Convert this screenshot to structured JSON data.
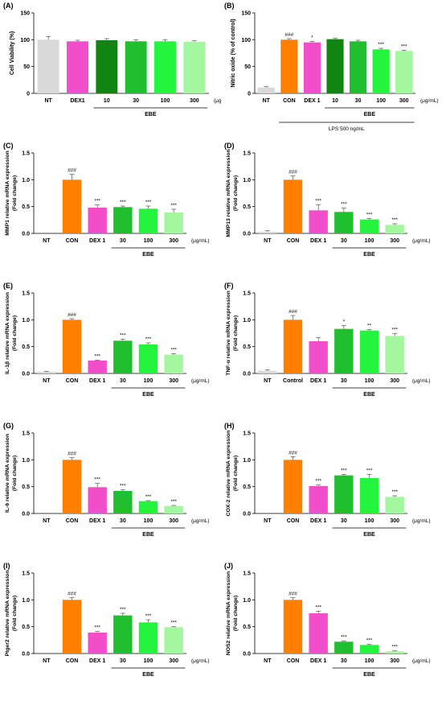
{
  "colors": {
    "NT": "#d9d9d9",
    "CON": "#ff8000",
    "DEX": "#f24ecb",
    "dark_green": "#118511",
    "green30": "#1fbf2f",
    "green100": "#22f53b",
    "green300": "#a3f79f"
  },
  "chart_data": [
    {
      "id": "A",
      "type": "bar",
      "panel_label": "(A)",
      "ylabel": "Cell Viability (%)",
      "ylabel2": "",
      "ylim": [
        0,
        150
      ],
      "yticks": [
        0,
        50,
        100,
        150
      ],
      "ytick_labels": [
        "0",
        "50",
        "100",
        "150"
      ],
      "categories": [
        "NT",
        "DEX1",
        "10",
        "30",
        "100",
        "300"
      ],
      "values": [
        100,
        97,
        99,
        97,
        97,
        96
      ],
      "errors": [
        6,
        2,
        3,
        3,
        3,
        2
      ],
      "colors": [
        "NT",
        "DEX",
        "dark_green",
        "green30",
        "green100",
        "green300"
      ],
      "annotations": [
        "",
        "",
        "",
        "",
        "",
        ""
      ],
      "unit_label": "(μg/mL)",
      "groups": [
        {
          "label": "EBE",
          "from": 2,
          "to": 5
        }
      ]
    },
    {
      "id": "B",
      "type": "bar",
      "panel_label": "(B)",
      "ylabel": "Nitric oxide (% of control)",
      "ylabel2": "",
      "ylim": [
        0,
        150
      ],
      "yticks": [
        0,
        50,
        100,
        150
      ],
      "ytick_labels": [
        "0",
        "50",
        "100",
        "150"
      ],
      "categories": [
        "NT",
        "CON",
        "DEX 1",
        "10",
        "30",
        "100",
        "300"
      ],
      "values": [
        11,
        100,
        95,
        101,
        97,
        82,
        79
      ],
      "errors": [
        1.5,
        2,
        2,
        1.5,
        2,
        2,
        1.5
      ],
      "colors": [
        "NT",
        "CON",
        "DEX",
        "dark_green",
        "green30",
        "green100",
        "green300"
      ],
      "annotations": [
        "",
        "###",
        "*",
        "",
        "",
        "***",
        "***"
      ],
      "unit_label": "(μg/mL)",
      "groups": [
        {
          "label": "EBE",
          "from": 3,
          "to": 6
        },
        {
          "label": "LPS 500 ng/mL",
          "from": 1,
          "to": 6
        }
      ]
    },
    {
      "id": "C",
      "type": "bar",
      "panel_label": "(C)",
      "ylabel": "MMP1 relative mRNA expression",
      "ylabel2": "(Fold change)",
      "ylim": [
        0,
        1.5
      ],
      "yticks": [
        0,
        0.5,
        1.0,
        1.5
      ],
      "ytick_labels": [
        "0.0",
        "0.5",
        "1.0",
        "1.5"
      ],
      "categories": [
        "NT",
        "CON",
        "DEX 1",
        "30",
        "100",
        "300"
      ],
      "values": [
        0,
        1.0,
        0.48,
        0.49,
        0.46,
        0.39
      ],
      "errors": [
        0,
        0.1,
        0.05,
        0.02,
        0.05,
        0.06
      ],
      "colors": [
        "NT",
        "CON",
        "DEX",
        "green30",
        "green100",
        "green300"
      ],
      "annotations": [
        "",
        "###",
        "***",
        "***",
        "***",
        "***"
      ],
      "unit_label": "(μg/mL)",
      "groups": [
        {
          "label": "EBE",
          "from": 3,
          "to": 5
        }
      ]
    },
    {
      "id": "D",
      "type": "bar",
      "panel_label": "(D)",
      "ylabel": "MMP13 relative mRNA expression",
      "ylabel2": "(Fold change)",
      "ylim": [
        0,
        1.5
      ],
      "yticks": [
        0,
        0.5,
        1.0,
        1.5
      ],
      "ytick_labels": [
        "0.0",
        "0.5",
        "1.0",
        "1.5"
      ],
      "categories": [
        "NT",
        "CON",
        "DEX 1",
        "30",
        "100",
        "300"
      ],
      "values": [
        0.03,
        1.0,
        0.43,
        0.4,
        0.26,
        0.16
      ],
      "errors": [
        0.02,
        0.07,
        0.1,
        0.07,
        0.02,
        0.02
      ],
      "colors": [
        "NT",
        "CON",
        "DEX",
        "green30",
        "green100",
        "green300"
      ],
      "annotations": [
        "",
        "###",
        "***",
        "***",
        "***",
        "***"
      ],
      "unit_label": "(μg/mL)",
      "groups": [
        {
          "label": "EBE",
          "from": 3,
          "to": 5
        }
      ]
    },
    {
      "id": "E",
      "type": "bar",
      "panel_label": "(E)",
      "ylabel": "IL-1β relative mRNA expression",
      "ylabel2": "(Fold change)",
      "ylim": [
        0,
        1.5
      ],
      "yticks": [
        0,
        0.5,
        1.0,
        1.5
      ],
      "ytick_labels": [
        "0.0",
        "0.5",
        "1.0",
        "1.5"
      ],
      "categories": [
        "NT",
        "CON",
        "DEX 1",
        "30",
        "100",
        "300"
      ],
      "values": [
        0.03,
        1.0,
        0.24,
        0.61,
        0.54,
        0.35
      ],
      "errors": [
        0.01,
        0.02,
        0.01,
        0.03,
        0.03,
        0.02
      ],
      "colors": [
        "NT",
        "CON",
        "DEX",
        "green30",
        "green100",
        "green300"
      ],
      "annotations": [
        "",
        "###",
        "***",
        "***",
        "***",
        "***"
      ],
      "unit_label": "(μg/mL)",
      "groups": [
        {
          "label": "EBE",
          "from": 3,
          "to": 5
        }
      ]
    },
    {
      "id": "F",
      "type": "bar",
      "panel_label": "(F)",
      "ylabel": "TNF-α relative mRNA expression",
      "ylabel2": "(Fold change)",
      "ylim": [
        0,
        1.5
      ],
      "yticks": [
        0,
        0.5,
        1.0,
        1.5
      ],
      "ytick_labels": [
        "0.0",
        "0.5",
        "1.0",
        "1.5"
      ],
      "categories": [
        "NT",
        "Control",
        "DEX 1",
        "30",
        "100",
        "300"
      ],
      "values": [
        0.05,
        1.0,
        0.6,
        0.83,
        0.8,
        0.7
      ],
      "errors": [
        0.02,
        0.08,
        0.07,
        0.06,
        0.02,
        0.04
      ],
      "colors": [
        "NT",
        "CON",
        "DEX",
        "green30",
        "green100",
        "green300"
      ],
      "annotations": [
        "",
        "###",
        "",
        "*",
        "**",
        "***"
      ],
      "unit_label": "(μg/mL)",
      "groups": [
        {
          "label": "EBE",
          "from": 3,
          "to": 5
        }
      ]
    },
    {
      "id": "G",
      "type": "bar",
      "panel_label": "(G)",
      "ylabel": "IL-6 relative mRNA expression",
      "ylabel2": "(Fold change)",
      "ylim": [
        0,
        1.5
      ],
      "yticks": [
        0,
        0.5,
        1.0,
        1.5
      ],
      "ytick_labels": [
        "0.0",
        "0.5",
        "1.0",
        "1.5"
      ],
      "categories": [
        "NT",
        "CON",
        "DEX 1",
        "30",
        "100",
        "300"
      ],
      "values": [
        0,
        1.0,
        0.49,
        0.42,
        0.23,
        0.14
      ],
      "errors": [
        0,
        0.04,
        0.07,
        0.02,
        0.01,
        0.01
      ],
      "colors": [
        "NT",
        "CON",
        "DEX",
        "green30",
        "green100",
        "green300"
      ],
      "annotations": [
        "",
        "###",
        "***",
        "***",
        "***",
        "***"
      ],
      "unit_label": "(μg/mL)",
      "groups": [
        {
          "label": "EBE",
          "from": 3,
          "to": 5
        }
      ]
    },
    {
      "id": "H",
      "type": "bar",
      "panel_label": "(H)",
      "ylabel": "COX-2 relative mRNA expression",
      "ylabel2": "(Fold change)",
      "ylim": [
        0,
        1.5
      ],
      "yticks": [
        0,
        0.5,
        1.0,
        1.5
      ],
      "ytick_labels": [
        "0.0",
        "0.5",
        "1.0",
        "1.5"
      ],
      "categories": [
        "NT",
        "CON",
        "DEX 1",
        "30",
        "100",
        "300"
      ],
      "values": [
        0,
        1.0,
        0.51,
        0.71,
        0.66,
        0.31
      ],
      "errors": [
        0,
        0.06,
        0.02,
        0.02,
        0.07,
        0.02
      ],
      "colors": [
        "NT",
        "CON",
        "DEX",
        "green30",
        "green100",
        "green300"
      ],
      "annotations": [
        "",
        "###",
        "***",
        "***",
        "***",
        "***"
      ],
      "unit_label": "(μg/mL)",
      "groups": [
        {
          "label": "EBE",
          "from": 3,
          "to": 5
        }
      ]
    },
    {
      "id": "I",
      "type": "bar",
      "panel_label": "(I)",
      "ylabel": "Ptger2 relative mRNA expression",
      "ylabel2": "(Fold change)",
      "ylim": [
        0,
        1.5
      ],
      "yticks": [
        0,
        0.5,
        1.0,
        1.5
      ],
      "ytick_labels": [
        "0.0",
        "0.5",
        "1.0",
        "1.5"
      ],
      "categories": [
        "NT",
        "CON",
        "DEX 1",
        "30",
        "100",
        "300"
      ],
      "values": [
        0,
        1.0,
        0.39,
        0.71,
        0.58,
        0.49
      ],
      "errors": [
        0,
        0.04,
        0.02,
        0.04,
        0.05,
        0.01
      ],
      "colors": [
        "NT",
        "CON",
        "DEX",
        "green30",
        "green100",
        "green300"
      ],
      "annotations": [
        "",
        "###",
        "***",
        "***",
        "***",
        "***"
      ],
      "unit_label": "(μg/mL)",
      "groups": [
        {
          "label": "EBE",
          "from": 3,
          "to": 5
        }
      ]
    },
    {
      "id": "J",
      "type": "bar",
      "panel_label": "(J)",
      "ylabel": "NOS2 relative mRNA expression",
      "ylabel2": "(Fold change)",
      "ylim": [
        0,
        1.5
      ],
      "yticks": [
        0,
        0.5,
        1.0,
        1.5
      ],
      "ytick_labels": [
        "0.0",
        "0.5",
        "1.0",
        "1.5"
      ],
      "categories": [
        "NT",
        "CON",
        "DEX 1",
        "30",
        "100",
        "300"
      ],
      "values": [
        0,
        1.0,
        0.75,
        0.22,
        0.16,
        0.04
      ],
      "errors": [
        0,
        0.04,
        0.04,
        0.01,
        0.01,
        0.01
      ],
      "colors": [
        "NT",
        "CON",
        "DEX",
        "green30",
        "green100",
        "green300"
      ],
      "annotations": [
        "",
        "###",
        "***",
        "***",
        "***",
        "***"
      ],
      "unit_label": "(μg/mL)",
      "groups": [
        {
          "label": "EBE",
          "from": 3,
          "to": 5
        }
      ]
    }
  ]
}
